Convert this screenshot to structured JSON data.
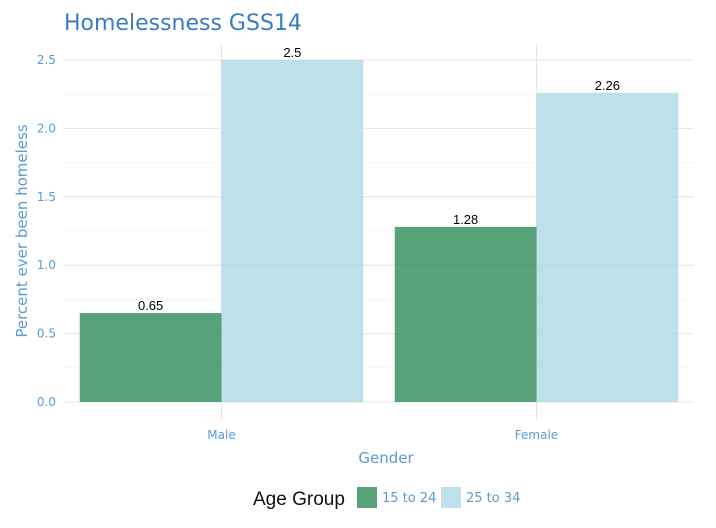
{
  "chart_data": {
    "type": "bar",
    "title": "Homelessness GSS14",
    "xlabel": "Gender",
    "ylabel": "Percent ever been homeless",
    "categories": [
      "Male",
      "Female"
    ],
    "series": [
      {
        "name": "15 to 24",
        "values": [
          0.65,
          1.28
        ],
        "labels": [
          "0.65",
          "1.28"
        ],
        "color": "#2e8b57"
      },
      {
        "name": "25 to 34",
        "values": [
          2.5,
          2.26
        ],
        "labels": [
          "2.5",
          "2.26"
        ],
        "color": "#add8e6"
      }
    ],
    "ylim": [
      0,
      2.5
    ],
    "yticks": [
      "0.0",
      "0.5",
      "1.0",
      "1.5",
      "2.0",
      "2.5"
    ],
    "grid": true,
    "legend": {
      "title": "Age Group",
      "placement": "bottom"
    }
  }
}
